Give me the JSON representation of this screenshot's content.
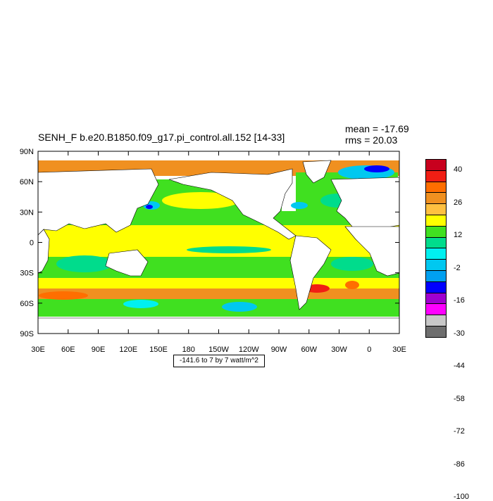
{
  "title": "SENH_F b.e20.B1850.f09_g17.pi_control.all.152 [14-33]",
  "stats": {
    "mean": "mean = -17.69",
    "rms": "rms = 20.03"
  },
  "note": "-141.6 to 7 by 7 watt/m^2",
  "y_ticks": [
    "90N",
    "60N",
    "30N",
    "0",
    "30S",
    "60S",
    "90S"
  ],
  "x_ticks": [
    "30E",
    "60E",
    "90E",
    "120E",
    "150E",
    "180",
    "150W",
    "120W",
    "90W",
    "60W",
    "30W",
    "0",
    "30E"
  ],
  "legend": {
    "labels": [
      "40",
      "26",
      "12",
      "-2",
      "-16",
      "-30",
      "-44",
      "-58",
      "-72",
      "-86",
      "-100"
    ],
    "colors": [
      "#c8001e",
      "#f01e14",
      "#ff6e00",
      "#f09020",
      "#ffc040",
      "#ffff00",
      "#40e020",
      "#00dc8c",
      "#00f0f0",
      "#00c8f0",
      "#00a0f0",
      "#0000ff",
      "#a000d0",
      "#ff00ff",
      "#c8c8c8",
      "#6e6e6e"
    ]
  },
  "chart_data": {
    "type": "heatmap",
    "title": "SENH_F b.e20.B1850.f09_g17.pi_control.all.152 [14-33]",
    "variable": "SENH_F",
    "units": "watt/m^2",
    "contour_min": -141.6,
    "contour_max": 7,
    "contour_interval": 7,
    "mean": -17.69,
    "rms": 20.03,
    "lon_range": [
      "30E",
      "30E"
    ],
    "lat_range": [
      "90S",
      "90N"
    ],
    "colorbar_levels": [
      40,
      26,
      12,
      -2,
      -16,
      -30,
      -44,
      -58,
      -72,
      -86,
      -100
    ]
  }
}
